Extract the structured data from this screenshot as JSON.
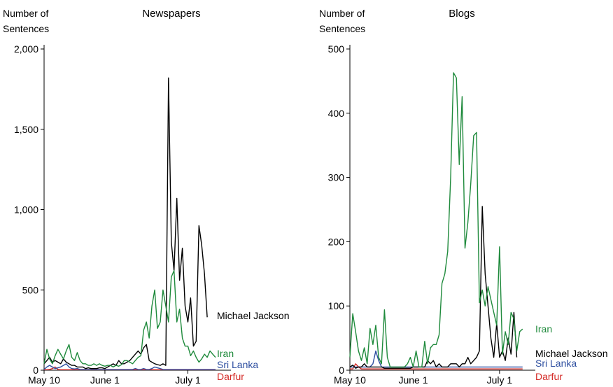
{
  "chart_data": [
    {
      "type": "line",
      "title": "Newspapers",
      "ylabel_lines": [
        "Number of",
        "Sentences"
      ],
      "x_ticks": [
        {
          "label": "May 10",
          "day": 0
        },
        {
          "label": "June 1",
          "day": 22
        },
        {
          "label": "July 1",
          "day": 52
        }
      ],
      "x_range": [
        0,
        62
      ],
      "ylim": [
        0,
        2000
      ],
      "y_ticks": [
        {
          "value": 0,
          "label": "0"
        },
        {
          "value": 500,
          "label": "500"
        },
        {
          "value": 1000,
          "label": "1,000"
        },
        {
          "value": 1500,
          "label": "1,500"
        },
        {
          "value": 2000,
          "label": "2,000"
        }
      ],
      "series": [
        {
          "name": "Iran",
          "color": "#1f8a3c",
          "values": [
            40,
            130,
            70,
            40,
            90,
            130,
            100,
            70,
            120,
            160,
            80,
            60,
            110,
            60,
            40,
            40,
            30,
            30,
            40,
            30,
            40,
            30,
            25,
            30,
            30,
            20,
            30,
            25,
            35,
            60,
            60,
            50,
            40,
            60,
            80,
            90,
            250,
            300,
            200,
            400,
            500,
            260,
            300,
            500,
            400,
            300,
            580,
            620,
            300,
            380,
            200,
            150,
            150,
            90,
            120,
            80,
            50,
            70,
            100,
            80,
            120,
            100,
            80
          ]
        },
        {
          "name": "Michael Jackson",
          "color": "#000000",
          "values": [
            40,
            60,
            80,
            50,
            60,
            50,
            40,
            70,
            50,
            40,
            30,
            30,
            20,
            20,
            20,
            10,
            15,
            10,
            10,
            10,
            15,
            15,
            10,
            20,
            30,
            40,
            30,
            60,
            40,
            40,
            50,
            60,
            80,
            100,
            120,
            100,
            140,
            160,
            60,
            50,
            40,
            35,
            30,
            40,
            30,
            1820,
            800,
            620,
            1070,
            560,
            760,
            400,
            300,
            450,
            150,
            180,
            900,
            780,
            600,
            330
          ]
        },
        {
          "name": "Sri Lanka",
          "color": "#2e4fa0",
          "values": [
            5,
            20,
            30,
            20,
            10,
            15,
            20,
            30,
            40,
            20,
            10,
            8,
            10,
            5,
            5,
            5,
            5,
            5,
            5,
            5,
            5,
            5,
            5,
            5,
            5,
            5,
            5,
            5,
            5,
            5,
            5,
            5,
            5,
            10,
            5,
            5,
            10,
            5,
            5,
            10,
            20,
            15,
            10,
            5,
            5,
            5,
            5,
            5,
            5,
            5,
            5,
            5,
            5,
            5,
            5,
            5,
            5,
            5,
            5,
            5,
            5,
            5,
            5
          ]
        },
        {
          "name": "Darfur",
          "color": "#d42a26",
          "values": [
            3,
            3,
            5,
            10,
            20,
            5,
            3,
            3,
            3,
            3,
            3,
            3,
            3,
            3,
            3,
            3,
            3,
            3,
            3,
            3,
            3,
            3,
            3,
            3,
            3,
            3,
            3,
            3,
            3,
            3,
            3,
            3,
            3,
            3,
            3,
            3,
            3,
            3,
            3,
            3,
            3,
            3,
            3,
            3,
            3,
            3,
            3,
            3,
            3,
            3,
            3,
            3,
            3,
            3,
            3,
            3,
            3,
            3,
            3,
            3,
            3,
            3,
            3
          ]
        }
      ]
    },
    {
      "type": "line",
      "title": "Blogs",
      "ylabel_lines": [
        "Number of",
        "Sentences"
      ],
      "x_ticks": [
        {
          "label": "May 10",
          "day": 0
        },
        {
          "label": "June 1",
          "day": 22
        },
        {
          "label": "July 1",
          "day": 52
        }
      ],
      "x_range": [
        0,
        62
      ],
      "ylim": [
        0,
        500
      ],
      "y_ticks": [
        {
          "value": 0,
          "label": "0"
        },
        {
          "value": 100,
          "label": "100"
        },
        {
          "value": 200,
          "label": "200"
        },
        {
          "value": 300,
          "label": "300"
        },
        {
          "value": 400,
          "label": "400"
        },
        {
          "value": 500,
          "label": "500"
        }
      ],
      "series": [
        {
          "name": "Iran",
          "color": "#1f8a3c",
          "values": [
            20,
            88,
            60,
            30,
            15,
            35,
            10,
            65,
            40,
            70,
            20,
            10,
            94,
            20,
            5,
            5,
            5,
            5,
            5,
            5,
            10,
            20,
            5,
            30,
            5,
            5,
            45,
            10,
            35,
            40,
            40,
            55,
            135,
            150,
            185,
            300,
            463,
            455,
            320,
            426,
            190,
            230,
            290,
            365,
            370,
            105,
            125,
            100,
            130,
            110,
            90,
            70,
            192,
            25,
            60,
            40,
            90,
            80,
            30,
            60,
            64
          ]
        },
        {
          "name": "Michael Jackson",
          "color": "#000000",
          "values": [
            5,
            8,
            3,
            5,
            5,
            10,
            5,
            5,
            5,
            5,
            5,
            5,
            3,
            3,
            3,
            3,
            3,
            3,
            3,
            3,
            3,
            3,
            5,
            5,
            5,
            5,
            5,
            15,
            10,
            15,
            5,
            10,
            5,
            5,
            5,
            10,
            10,
            10,
            5,
            10,
            10,
            20,
            10,
            15,
            20,
            30,
            255,
            150,
            100,
            50,
            20,
            73,
            20,
            30,
            15,
            50,
            25,
            90,
            20
          ]
        },
        {
          "name": "Sri Lanka",
          "color": "#2e4fa0",
          "values": [
            5,
            5,
            5,
            5,
            5,
            5,
            5,
            5,
            10,
            30,
            15,
            5,
            5,
            5,
            5,
            5,
            5,
            5,
            5,
            5,
            5,
            5,
            5,
            5,
            5,
            5,
            5,
            5,
            5,
            5,
            5,
            5,
            5,
            5,
            5,
            5,
            5,
            5,
            5,
            5,
            5,
            5,
            5,
            5,
            5,
            5,
            5,
            5,
            5,
            5,
            5,
            5,
            5,
            5,
            5,
            5,
            5,
            5,
            5,
            5,
            5
          ]
        },
        {
          "name": "Darfur",
          "color": "#d42a26",
          "values": [
            2,
            2,
            10,
            5,
            2,
            2,
            2,
            2,
            2,
            2,
            2,
            2,
            2,
            2,
            2,
            2,
            2,
            2,
            2,
            2,
            2,
            2,
            2,
            2,
            2,
            2,
            2,
            2,
            2,
            2,
            2,
            2,
            2,
            2,
            2,
            2,
            2,
            2,
            2,
            2,
            2,
            2,
            2,
            2,
            2,
            2,
            2,
            2,
            2,
            2,
            2,
            2,
            2,
            2,
            2,
            2,
            2,
            2,
            2,
            2,
            2
          ]
        }
      ]
    }
  ]
}
